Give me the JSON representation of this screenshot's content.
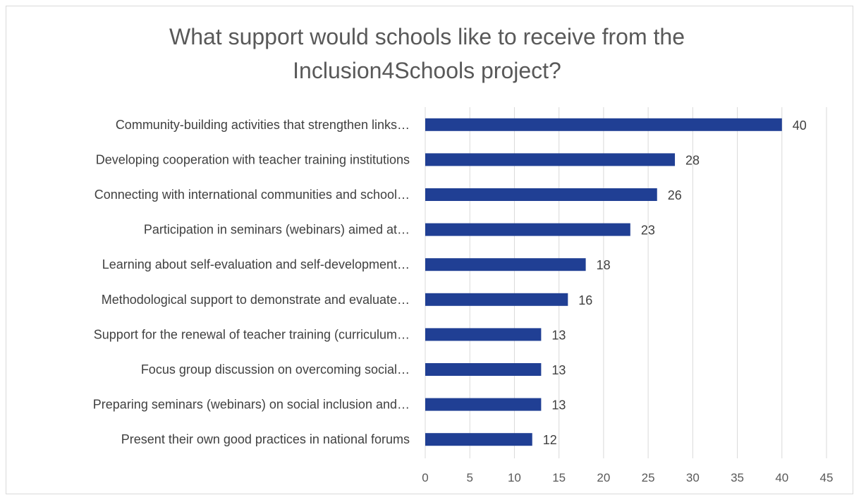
{
  "chart_data": {
    "type": "bar",
    "orientation": "horizontal",
    "title": "What support would schools like to receive from the Inclusion4Schools project?",
    "title_lines": [
      "What support would schools like to receive from the",
      "Inclusion4Schools project?"
    ],
    "categories": [
      "Community-building activities that strengthen links…",
      "Developing cooperation with teacher training institutions",
      "Connecting with international communities and school…",
      "Participation in seminars (webinars) aimed at…",
      "Learning about self-evaluation and self-development…",
      "Methodological support to demonstrate and evaluate…",
      "Support for the renewal of teacher training (curriculum…",
      "Focus group discussion on overcoming social…",
      "Preparing seminars (webinars) on social inclusion and…",
      "Present their own good practices in national forums"
    ],
    "values": [
      40,
      28,
      26,
      23,
      18,
      16,
      13,
      13,
      13,
      12
    ],
    "xlim": [
      0,
      45
    ],
    "xticks": [
      0,
      5,
      10,
      15,
      20,
      25,
      30,
      35,
      40,
      45
    ],
    "grid": true,
    "legend": "none",
    "bar_color": "#203f94",
    "grid_color": "#d9d9d9"
  }
}
